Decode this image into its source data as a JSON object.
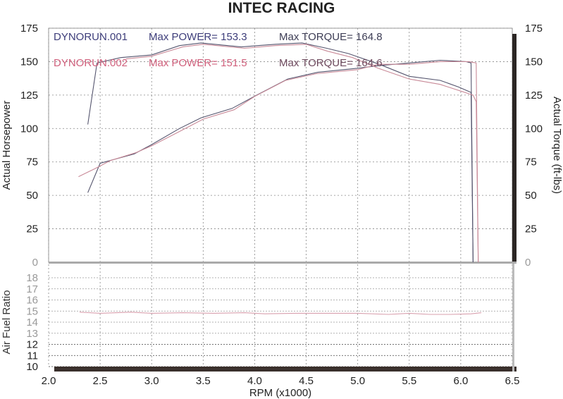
{
  "chart_data": {
    "type": "line",
    "title": "INTEC RACING",
    "xlabel": "RPM (x1000)",
    "xlim": [
      2.0,
      6.5
    ],
    "x_ticks": [
      "2.0",
      "2.5",
      "3.0",
      "3.5",
      "4.0",
      "4.5",
      "5.0",
      "5.5",
      "6.0",
      "6.5"
    ],
    "grid": true,
    "main_panel": {
      "ylabel_left": "Actual Horsepower",
      "ylabel_right": "Actual Torque (ft-lbs)",
      "ylim": [
        0,
        175
      ],
      "y_ticks": [
        "0",
        "25",
        "50",
        "75",
        "100",
        "125",
        "150",
        "175"
      ],
      "legend": [
        {
          "run": "DYNORUN.001",
          "power_label": "Max POWER= 153.3",
          "torque_label": "Max TORQUE= 164.8",
          "color": "#3d3d7a",
          "torque_color": "#3d3d55"
        },
        {
          "run": "DYNORUN.002",
          "power_label": "Max POWER= 151.5",
          "torque_label": "Max TORQUE= 164.6",
          "color": "#d0607c",
          "torque_color": "#6e4a5e"
        }
      ],
      "series": [
        {
          "run": "DYNORUN.001",
          "measure": "power",
          "color": "#55556e",
          "x": [
            2.38,
            2.5,
            2.83,
            3.0,
            3.27,
            3.48,
            3.78,
            4.02,
            4.32,
            4.61,
            4.99,
            5.21,
            5.5,
            5.8,
            6.05,
            6.1,
            6.12
          ],
          "y": [
            52,
            74,
            81,
            88,
            100,
            108,
            115,
            125,
            137,
            142,
            145,
            147,
            149,
            151,
            150,
            149,
            0
          ]
        },
        {
          "run": "DYNORUN.001",
          "measure": "torque",
          "color": "#55556e",
          "x": [
            2.38,
            2.47,
            2.7,
            3.0,
            3.27,
            3.48,
            3.87,
            4.2,
            4.46,
            4.7,
            4.91,
            5.21,
            5.5,
            5.8,
            5.98,
            6.1,
            6.12
          ],
          "y": [
            103,
            149,
            153,
            155,
            162,
            164,
            161,
            163,
            164,
            160,
            156,
            148,
            139,
            136,
            131,
            127,
            0
          ]
        },
        {
          "run": "DYNORUN.002",
          "measure": "power",
          "color": "#c98a98",
          "x": [
            2.29,
            2.45,
            2.6,
            2.85,
            3.0,
            3.3,
            3.5,
            3.8,
            4.0,
            4.3,
            4.6,
            5.0,
            5.2,
            5.5,
            5.8,
            6.08,
            6.15,
            6.17
          ],
          "y": [
            64,
            70,
            76,
            82,
            87,
            99,
            107,
            114,
            124,
            136,
            141,
            144,
            148,
            148,
            150,
            150,
            149,
            0
          ]
        },
        {
          "run": "DYNORUN.002",
          "measure": "torque",
          "color": "#c98a98",
          "x": [
            2.75,
            3.0,
            3.3,
            3.5,
            3.9,
            4.2,
            4.5,
            4.7,
            4.95,
            5.2,
            5.5,
            5.8,
            6.0,
            6.12,
            6.15,
            6.17
          ],
          "y": [
            152,
            154,
            161,
            163,
            160,
            162,
            163,
            158,
            153,
            145,
            137,
            133,
            128,
            125,
            120,
            0
          ]
        }
      ]
    },
    "afr_panel": {
      "ylabel": "Air Fuel Ratio",
      "ylim": [
        10,
        18
      ],
      "y_ticks": [
        "10",
        "11",
        "12",
        "13",
        "14",
        "15",
        "16",
        "17",
        "18"
      ],
      "series": [
        {
          "run": "DYNORUN.002",
          "measure": "air fuel ratio",
          "color": "#d9a0ae",
          "x": [
            2.3,
            2.5,
            2.8,
            3.0,
            3.3,
            3.6,
            3.9,
            4.1,
            4.4,
            4.7,
            5.0,
            5.3,
            5.5,
            5.7,
            5.9,
            6.1,
            6.2
          ],
          "y": [
            14.9,
            14.8,
            14.9,
            14.8,
            14.85,
            14.8,
            14.85,
            14.75,
            14.8,
            14.8,
            14.8,
            14.7,
            14.8,
            14.7,
            14.7,
            14.75,
            14.85
          ]
        }
      ]
    }
  }
}
